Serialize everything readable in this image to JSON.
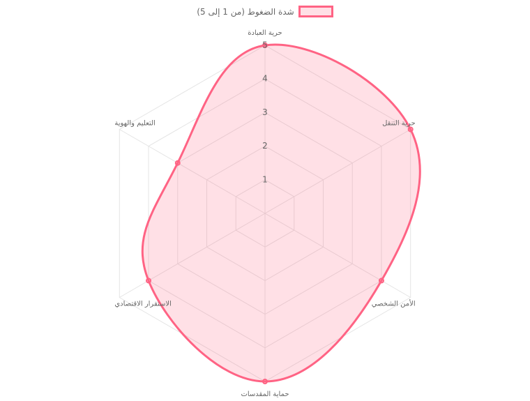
{
  "chart_data": {
    "type": "radar",
    "categories": [
      "حرية العبادة",
      "حرية التنقل",
      "الأمن الشخصي",
      "حماية المقدسات",
      "الاستقرار الاقتصادي",
      "التعليم والهوية"
    ],
    "series": [
      {
        "name": "شدة الضغوط (من 1 إلى 5)",
        "values": [
          5,
          5,
          4,
          5,
          4,
          3
        ],
        "border_color": "#ff6384",
        "fill_color": "rgba(255, 99, 132, 0.2)"
      }
    ],
    "r_ticks": [
      "1",
      "2",
      "3",
      "4",
      "5"
    ],
    "r_range": [
      0,
      5
    ],
    "grid": true,
    "legend_position": "top"
  }
}
